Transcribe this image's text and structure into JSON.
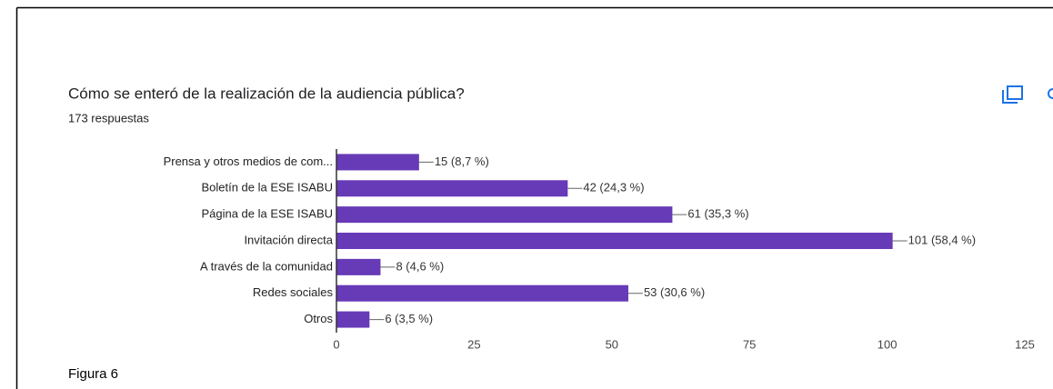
{
  "chart_data": {
    "type": "bar",
    "orientation": "horizontal",
    "title": "Cómo se enteró de la realización de la audiencia pública?",
    "subtitle": "173 respuestas",
    "caption": "Figura 6",
    "categories": [
      "Prensa y otros medios de com...",
      "Boletín de la ESE ISABU",
      "Página de la ESE ISABU",
      "Invitación directa",
      "A través de la comunidad",
      "Redes sociales",
      "Otros"
    ],
    "values": [
      15,
      42,
      61,
      101,
      8,
      53,
      6
    ],
    "value_labels": [
      "15 (8,7 %)",
      "42 (24,3 %)",
      "61 (35,3 %)",
      "101 (58,4 %)",
      "8 (4,6 %)",
      "53 (30,6 %)",
      "6 (3,5 %)"
    ],
    "color": "#673ab7",
    "xlim": [
      0,
      125
    ],
    "xticks": [
      0,
      25,
      50,
      75,
      100,
      125
    ],
    "grid": false
  }
}
